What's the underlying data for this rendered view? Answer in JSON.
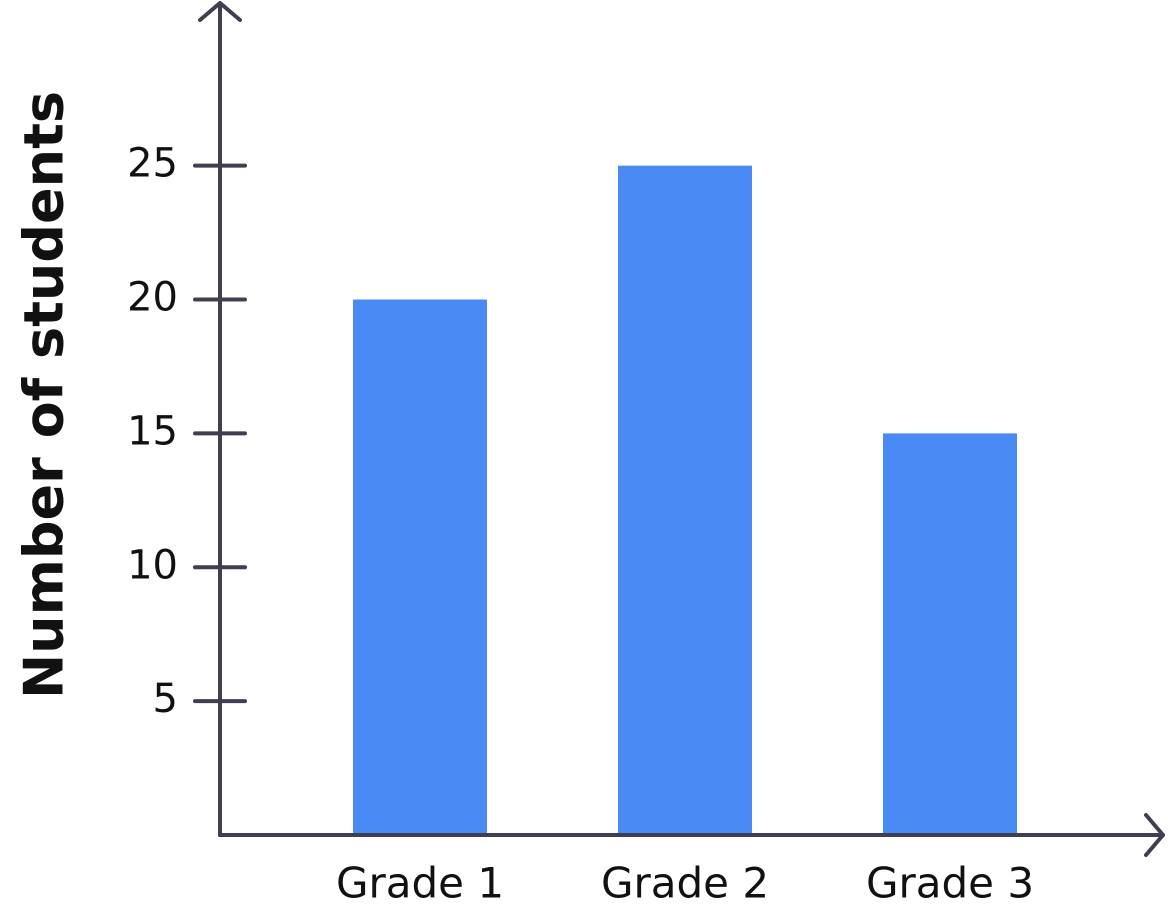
{
  "chart_data": {
    "type": "bar",
    "y_label": "Number of students",
    "categories": [
      "Grade 1",
      "Grade 2",
      "Grade 3"
    ],
    "values": [
      20,
      25,
      15
    ],
    "color": "#4a8af4",
    "ylim": [
      0,
      31
    ],
    "yticks": [
      5,
      10,
      15,
      20,
      25
    ],
    "grid": false
  }
}
